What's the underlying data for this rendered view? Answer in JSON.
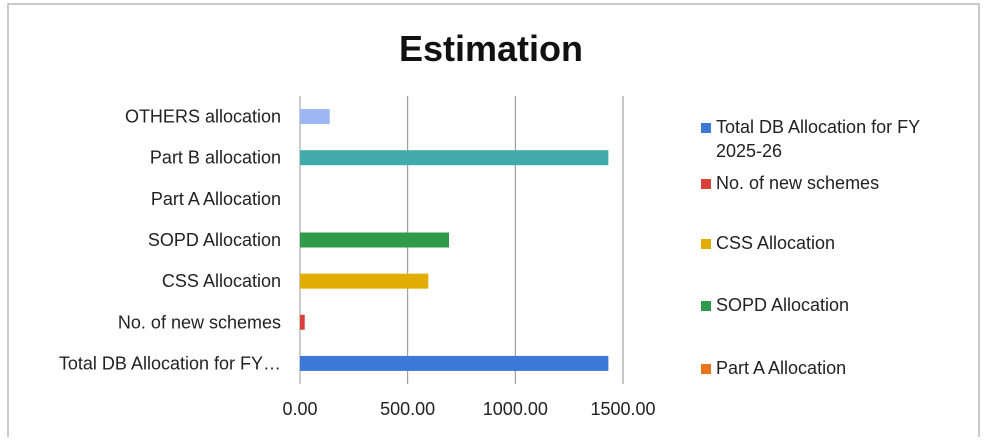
{
  "chart_data": {
    "type": "bar",
    "orientation": "horizontal",
    "title": "Estimation",
    "categories": [
      "OTHERS allocation",
      "Part B allocation",
      "Part A Allocation",
      "SOPD Allocation",
      "CSS Allocation",
      "No. of new schemes",
      "Total DB Allocation for FY…"
    ],
    "values": [
      138,
      1432,
      0,
      692,
      596,
      22,
      1432
    ],
    "bar_colors": [
      "#9db7f5",
      "#41aaaa",
      "#e8741c",
      "#2f9a4a",
      "#e0ad00",
      "#d8413a",
      "#3b78d8"
    ],
    "x_ticks": [
      "0.00",
      "500.00",
      "1000.00",
      "1500.00"
    ],
    "x_tick_values": [
      0,
      500,
      1000,
      1500
    ],
    "xlim": [
      0,
      1500
    ],
    "xlabel": "",
    "ylabel": "",
    "grid": "vertical major gridlines",
    "legend_position": "right",
    "legend": [
      {
        "line1": "Total DB Allocation for FY",
        "line2": "2025-26",
        "color": "#3b78d8"
      },
      {
        "line1": "No. of new schemes",
        "line2": "",
        "color": "#d8413a"
      },
      {
        "line1": "CSS Allocation",
        "line2": "",
        "color": "#e0ad00"
      },
      {
        "line1": "SOPD Allocation",
        "line2": "",
        "color": "#2f9a4a"
      },
      {
        "line1": "Part A Allocation",
        "line2": "",
        "color": "#e8741c"
      }
    ]
  }
}
